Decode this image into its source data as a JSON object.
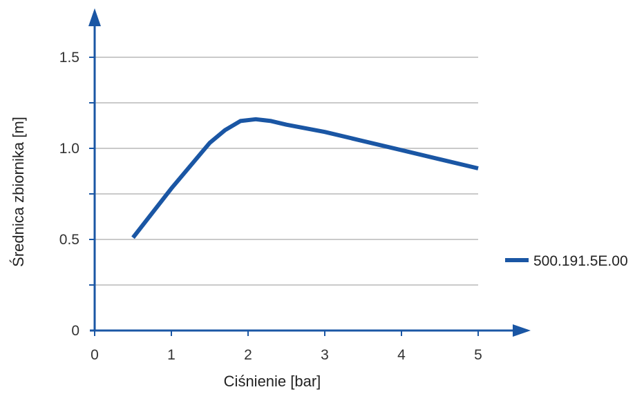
{
  "chart_data": {
    "type": "line",
    "title": "",
    "xlabel": "Ciśnienie [bar]",
    "ylabel": "Średnica zbiornika [m]",
    "xlim": [
      0,
      5
    ],
    "ylim": [
      0,
      1.5
    ],
    "x_ticks": [
      "0",
      "1",
      "2",
      "3",
      "4",
      "5"
    ],
    "y_ticks": [
      "0",
      "0.5",
      "1.0",
      "1.5"
    ],
    "grid": true,
    "legend_position": "right",
    "series": [
      {
        "name": "500.191.5E.00",
        "color": "#1a56a4",
        "x": [
          0.5,
          1.0,
          1.5,
          1.7,
          1.9,
          2.1,
          2.3,
          2.5,
          3.0,
          3.5,
          4.0,
          4.5,
          5.0
        ],
        "y": [
          0.51,
          0.78,
          1.03,
          1.1,
          1.15,
          1.16,
          1.15,
          1.13,
          1.09,
          1.04,
          0.99,
          0.94,
          0.89
        ]
      }
    ]
  }
}
